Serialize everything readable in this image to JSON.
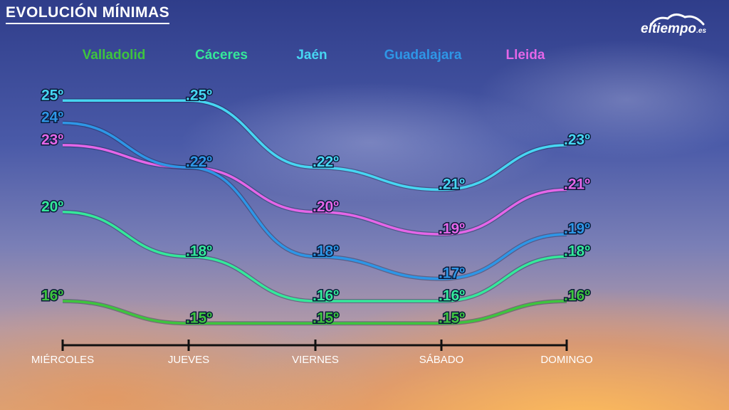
{
  "title": "EVOLUCIÓN MÍNIMAS",
  "logo": {
    "main": "eltiempo",
    "domain": ".es"
  },
  "chart_data": {
    "type": "line",
    "categories": [
      "MIÉRCOLES",
      "JUEVES",
      "VIERNES",
      "SÁBADO",
      "DOMINGO"
    ],
    "unit": "º",
    "series": [
      {
        "name": "Valladolid",
        "color": "#3ec43e",
        "values": [
          16,
          15,
          15,
          15,
          16
        ]
      },
      {
        "name": "Cáceres",
        "color": "#35e89a",
        "values": [
          20,
          18,
          16,
          16,
          18
        ]
      },
      {
        "name": "Jaén",
        "color": "#47d6f2",
        "values": [
          25,
          25,
          22,
          21,
          23
        ]
      },
      {
        "name": "Guadalajara",
        "color": "#2e96e6",
        "values": [
          24,
          22,
          18,
          17,
          19
        ]
      },
      {
        "name": "Lleida",
        "color": "#e466e8",
        "values": [
          23,
          22,
          20,
          19,
          21
        ]
      }
    ],
    "legend": "top",
    "grid": false
  }
}
